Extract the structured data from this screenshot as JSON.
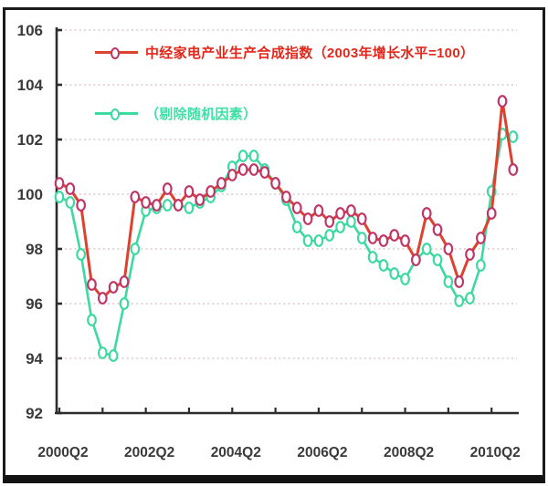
{
  "legend": {
    "series1_label": "中经家电产业生产合成指数（2003年增长水平=100）",
    "series2_label": "（剔除随机因素）"
  },
  "colors": {
    "background": "#ffffff",
    "frame": "#1b1b1b",
    "grid": "#d6bcbc",
    "axis": "#2d2d2d",
    "label": "#3a3a3a"
  },
  "chart_data": {
    "type": "line",
    "title": "",
    "xlabel": "",
    "ylabel": "",
    "ylim": [
      92,
      106
    ],
    "ytick_step": 2,
    "grid": "dotted-horizontal",
    "legend_position": "top-left-inside",
    "categories": [
      "2000Q2",
      "2000Q3",
      "2000Q4",
      "2001Q1",
      "2001Q2",
      "2001Q3",
      "2001Q4",
      "2002Q1",
      "2002Q2",
      "2002Q3",
      "2002Q4",
      "2003Q1",
      "2003Q2",
      "2003Q3",
      "2003Q4",
      "2004Q1",
      "2004Q2",
      "2004Q3",
      "2004Q4",
      "2005Q1",
      "2005Q2",
      "2005Q3",
      "2005Q4",
      "2006Q1",
      "2006Q2",
      "2006Q3",
      "2006Q4",
      "2007Q1",
      "2007Q2",
      "2007Q3",
      "2007Q4",
      "2008Q1",
      "2008Q2",
      "2008Q3",
      "2008Q4",
      "2009Q1",
      "2009Q2",
      "2009Q3",
      "2009Q4",
      "2010Q1",
      "2010Q2",
      "2010Q3",
      "2010Q4"
    ],
    "ytick_labels": [
      "92",
      "94",
      "96",
      "98",
      "100",
      "102",
      "104",
      "106"
    ],
    "xtick_labels": [
      "2000Q2",
      "2002Q2",
      "2004Q2",
      "2006Q2",
      "2008Q2",
      "2010Q2"
    ],
    "series": [
      {
        "name": "中经家电产业生产合成指数（2003年增长水平=100）",
        "color": "#df412f",
        "marker_color": "#bf3568",
        "text_color": "#e4271a",
        "marker": "open-ellipse",
        "values": [
          100.4,
          100.2,
          99.6,
          96.7,
          96.2,
          96.6,
          96.8,
          99.9,
          99.7,
          99.6,
          100.2,
          99.6,
          100.1,
          99.8,
          100.1,
          100.4,
          100.7,
          100.9,
          100.9,
          100.8,
          100.4,
          99.9,
          99.5,
          99.1,
          99.4,
          99.0,
          99.3,
          99.4,
          99.1,
          98.4,
          98.3,
          98.5,
          98.3,
          97.6,
          99.3,
          98.7,
          98.0,
          96.8,
          97.8,
          98.4,
          99.3,
          103.4,
          100.9
        ]
      },
      {
        "name": "（剔除随机因素）",
        "color": "#3cd9a1",
        "marker_color": "#3cd9a1",
        "text_color": "#3fe0a6",
        "marker": "open-ellipse",
        "values": [
          99.9,
          99.7,
          97.8,
          95.4,
          94.2,
          94.1,
          96.0,
          98.0,
          99.4,
          99.5,
          99.6,
          99.6,
          99.5,
          99.7,
          99.9,
          100.3,
          101.0,
          101.4,
          101.4,
          100.9,
          100.4,
          99.8,
          98.8,
          98.3,
          98.3,
          98.5,
          98.8,
          99.0,
          98.4,
          97.7,
          97.4,
          97.1,
          96.9,
          97.6,
          98.0,
          97.6,
          96.8,
          96.1,
          96.2,
          97.4,
          100.1,
          102.2,
          102.1
        ]
      }
    ]
  }
}
